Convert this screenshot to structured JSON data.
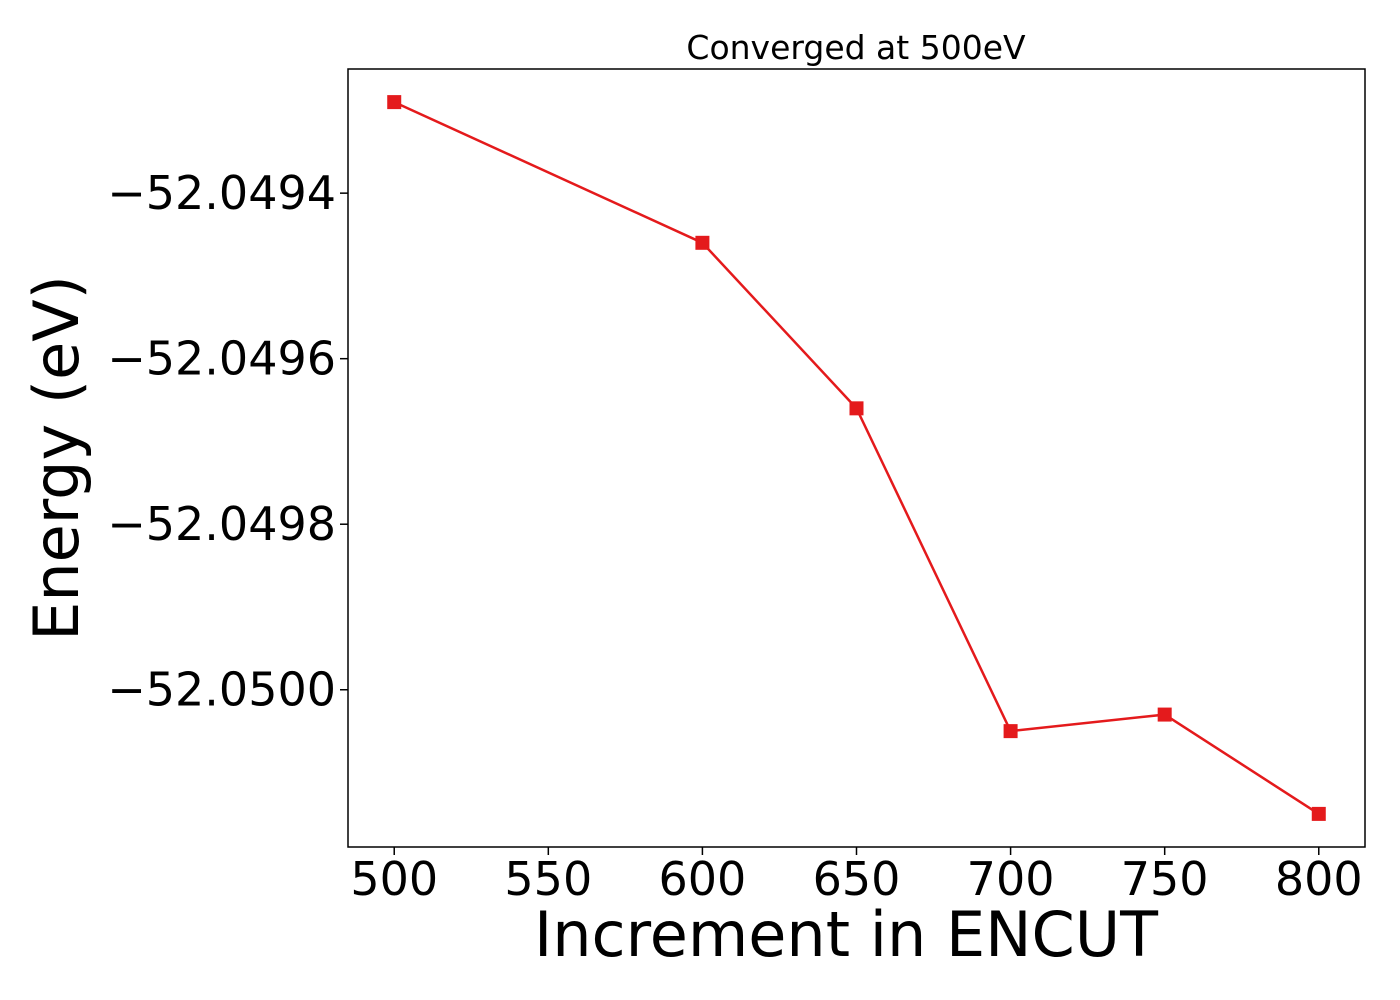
{
  "chart_data": {
    "type": "line",
    "title": "Converged at 500eV",
    "xlabel": "Increment in ENCUT",
    "ylabel": "Energy (eV)",
    "x": [
      500,
      600,
      650,
      700,
      750,
      800
    ],
    "series": [
      {
        "values": [
          -52.04929,
          -52.04946,
          -52.04966,
          -52.05005,
          -52.05003,
          -52.05015
        ]
      }
    ],
    "xlim": [
      485,
      815
    ],
    "ylim": [
      -52.05019,
      -52.04925
    ],
    "xticks": [
      500,
      550,
      600,
      650,
      700,
      750,
      800
    ],
    "xtick_labels": [
      "500",
      "550",
      "600",
      "650",
      "700",
      "750",
      "800"
    ],
    "yticks": [
      -52.0494,
      -52.0496,
      -52.0498,
      -52.05
    ],
    "ytick_labels": [
      "−52.0494",
      "−52.0496",
      "−52.0498",
      "−52.0500"
    ],
    "grid": false,
    "marker": "square",
    "colors": {
      "series": "#e41a1c",
      "axis": "#000000"
    }
  }
}
